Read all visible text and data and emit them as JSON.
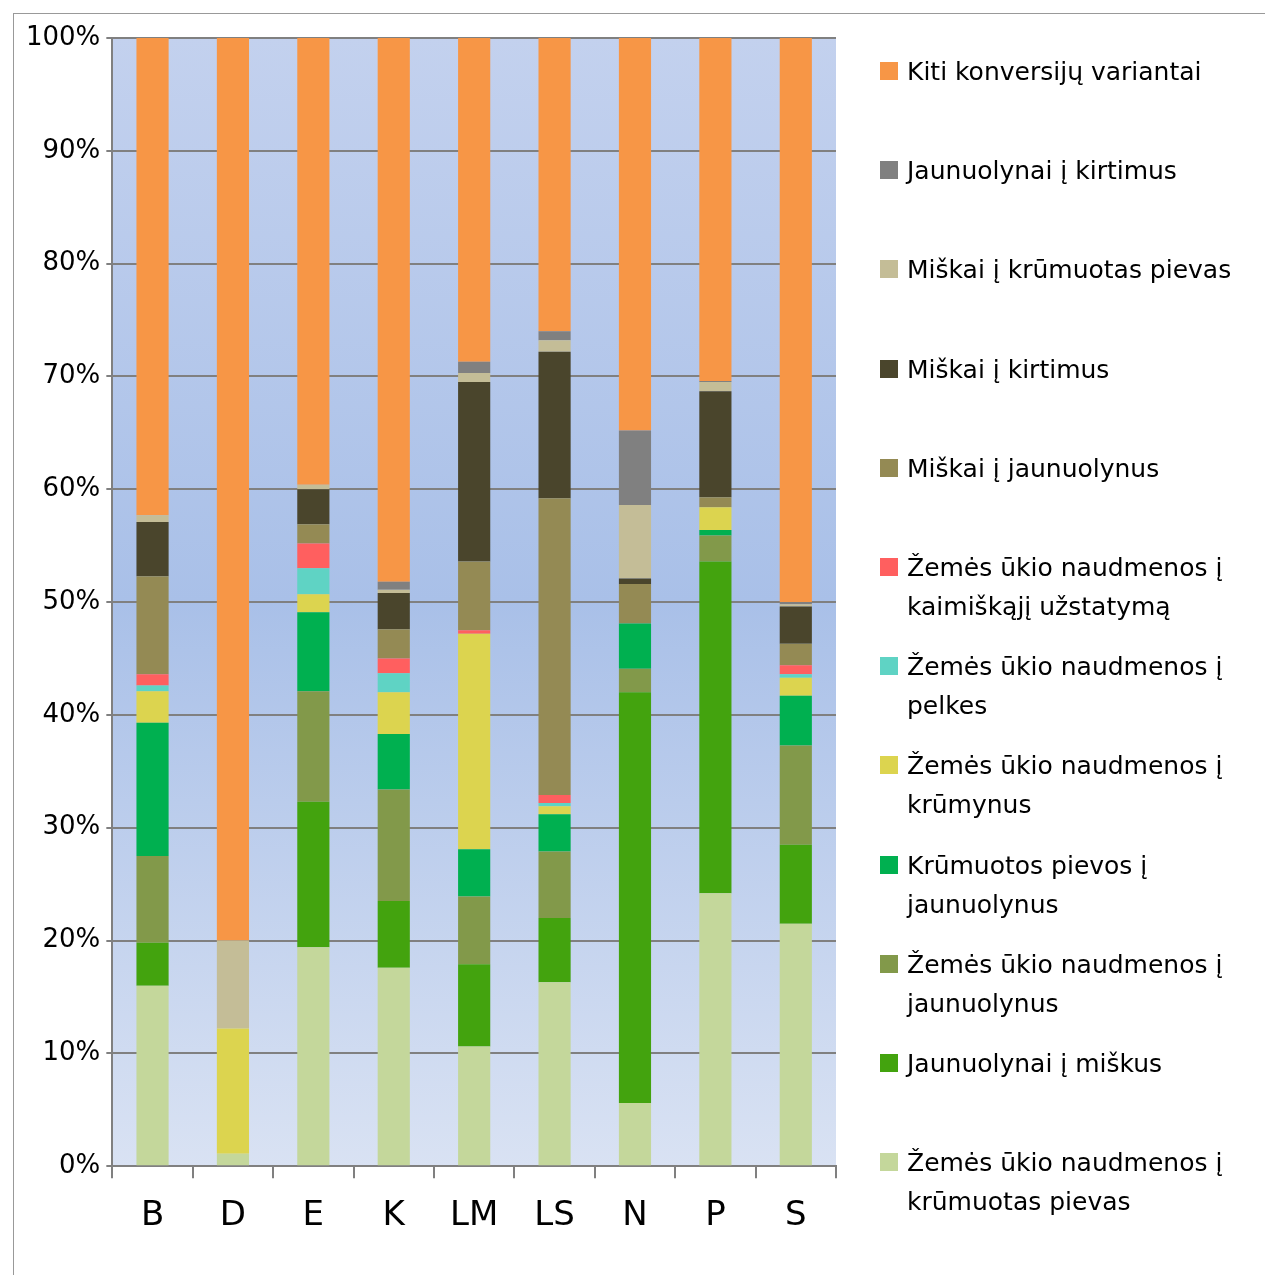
{
  "chart_data": {
    "type": "bar",
    "stacked": true,
    "categories": [
      "B",
      "D",
      "E",
      "K",
      "LM",
      "LS",
      "N",
      "P",
      "S"
    ],
    "series": [
      {
        "name": "Žemės ūkio naudmenos į krūmuotas pievas",
        "color": "#c4d79b",
        "values": [
          16.0,
          1.1,
          19.4,
          17.6,
          10.6,
          16.3,
          5.6,
          24.2,
          21.5
        ]
      },
      {
        "name": "Jaunuolynai į miškus",
        "color": "#43a30e",
        "values": [
          3.8,
          0,
          12.9,
          5.9,
          7.3,
          5.7,
          36.4,
          29.4,
          7.0
        ]
      },
      {
        "name": "Žemės ūkio naudmenos į jaunuolynus",
        "color": "#82994a",
        "values": [
          7.7,
          0,
          9.8,
          9.9,
          6.0,
          5.9,
          2.1,
          2.3,
          8.8
        ]
      },
      {
        "name": "Krūmuotos pievos į jaunuolynus",
        "color": "#00b050",
        "values": [
          11.8,
          0,
          7.0,
          4.9,
          4.2,
          3.3,
          4.0,
          0.5,
          4.4
        ]
      },
      {
        "name": "Žemės ūkio naudmenos į krūmynus",
        "color": "#dcd44f",
        "values": [
          2.8,
          11.1,
          1.6,
          3.7,
          19.1,
          0.7,
          0,
          2.0,
          1.6
        ]
      },
      {
        "name": "Žemės ūkio naudmenos į pelkes",
        "color": "#5fd3c4",
        "values": [
          0.5,
          0,
          2.3,
          1.7,
          0,
          0.3,
          0,
          0,
          0.3
        ]
      },
      {
        "name": "Žemės ūkio naudmenos į kaimiškąjį užstatymą",
        "color": "#ff5f5f",
        "values": [
          1.0,
          0,
          2.2,
          1.3,
          0.3,
          0.7,
          0,
          0,
          0.8
        ]
      },
      {
        "name": "Miškai į jaunuolynus",
        "color": "#948a54",
        "values": [
          8.7,
          0,
          1.7,
          2.6,
          6.1,
          26.3,
          3.5,
          0.9,
          1.9
        ]
      },
      {
        "name": "Miškai į kirtimus",
        "color": "#4a452c",
        "values": [
          4.8,
          0,
          3.1,
          3.2,
          15.9,
          13.0,
          0.5,
          9.4,
          3.3
        ]
      },
      {
        "name": "Miškai į krūmuotas pievas",
        "color": "#c4bd97",
        "values": [
          0.6,
          7.8,
          0.4,
          0.3,
          0.8,
          1.0,
          6.5,
          0.8,
          0.2
        ]
      },
      {
        "name": "Jaunuolynai į kirtimus",
        "color": "#808080",
        "values": [
          0,
          0,
          0,
          0.7,
          1.0,
          0.8,
          6.6,
          0.1,
          0.2
        ]
      },
      {
        "name": "Kiti konversijų variantai",
        "color": "#f79646",
        "values": [
          42.3,
          80.0,
          39.6,
          48.2,
          28.7,
          26.0,
          34.8,
          30.4,
          50.0
        ]
      }
    ],
    "ylim": [
      0,
      100
    ],
    "yticks": [
      {
        "value": 0,
        "label": "0%"
      },
      {
        "value": 10,
        "label": "10%"
      },
      {
        "value": 20,
        "label": "20%"
      },
      {
        "value": 30,
        "label": "30%"
      },
      {
        "value": 40,
        "label": "40%"
      },
      {
        "value": 50,
        "label": "50%"
      },
      {
        "value": 60,
        "label": "60%"
      },
      {
        "value": 70,
        "label": "70%"
      },
      {
        "value": 80,
        "label": "80%"
      },
      {
        "value": 90,
        "label": "90%"
      },
      {
        "value": 100,
        "label": "100%"
      }
    ],
    "grid": "y",
    "legend": "right"
  }
}
